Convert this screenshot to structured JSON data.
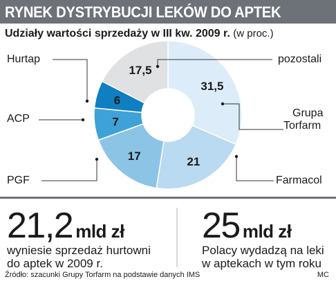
{
  "header": {
    "title": "RYNEK DYSTRYBUCJI LEKÓW DO APTEK"
  },
  "subtitle": {
    "main": "Udziały wartości sprzedaży w III kw. 2009 r.",
    "unit": "(w proc.)"
  },
  "chart_data": {
    "type": "pie",
    "title": "Udziały wartości sprzedaży w III kw. 2009 r.",
    "unit": "(w proc.)",
    "slices": [
      {
        "category": "Grupa Torfarm",
        "value": 31.5,
        "value_label": "31,5",
        "color": "#dcedf9"
      },
      {
        "category": "Farmacol",
        "value": 21,
        "value_label": "21",
        "color": "#b9daf0"
      },
      {
        "category": "PGF",
        "value": 17,
        "value_label": "17",
        "color": "#8cc4e6"
      },
      {
        "category": "ACP",
        "value": 7,
        "value_label": "7",
        "color": "#3ea1d8"
      },
      {
        "category": "Hurtap",
        "value": 6,
        "value_label": "6",
        "color": "#0f7fc1"
      },
      {
        "category": "pozostali",
        "value": 17.5,
        "value_label": "17,5",
        "color": "#dfe1e3"
      }
    ],
    "donut": true
  },
  "labels": {
    "hurtap": "Hurtap",
    "acp": "ACP",
    "pgf": "PGF",
    "pozostali": "pozostali",
    "torfarm_line1": "Grupa",
    "torfarm_line2": "Torfarm",
    "farmacol": "Farmacol"
  },
  "stats": {
    "left": {
      "value": "21,2",
      "unit": "mld zł",
      "line1": "wyniesie sprzedaż hurtowni",
      "line2": "do aptek w 2009 r."
    },
    "right": {
      "value": "25",
      "unit": "mld zł",
      "line1": "Polacy wydadzą na leki",
      "line2": "w aptekach w tym roku"
    }
  },
  "footer": {
    "source": "Źródło: szacunki Grupy Torfarm na podstawie danych IMS",
    "author": "MC"
  }
}
